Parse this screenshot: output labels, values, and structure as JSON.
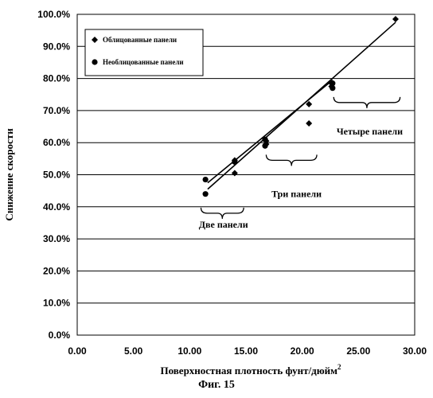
{
  "caption": "Фиг. 15",
  "chart_data": {
    "type": "scatter",
    "xlabel": "Поверхностная плотность фунт/дюйм",
    "xlabel_superscript": "2",
    "ylabel": "Снижение скорости",
    "xlim": [
      0,
      30
    ],
    "ylim": [
      0,
      1
    ],
    "x_ticks": [
      0,
      5,
      10,
      15,
      20,
      25,
      30
    ],
    "x_tick_labels": [
      "0.00",
      "5.00",
      "10.00",
      "15.00",
      "20.00",
      "25.00",
      "30.00"
    ],
    "y_ticks": [
      0,
      0.1,
      0.2,
      0.3,
      0.4,
      0.5,
      0.6,
      0.7,
      0.8,
      0.9,
      1.0
    ],
    "y_tick_labels": [
      "0.0%",
      "10.0%",
      "20.0%",
      "30.0%",
      "40.0%",
      "50.0%",
      "60.0%",
      "70.0%",
      "80.0%",
      "90.0%",
      "100.0%"
    ],
    "grid": "horizontal",
    "legend_position": "top-left",
    "series": [
      {
        "name": "Облицованные панели",
        "marker": "diamond",
        "points": [
          [
            14.0,
            0.545
          ],
          [
            14.0,
            0.505
          ],
          [
            16.8,
            0.605
          ],
          [
            16.8,
            0.595
          ],
          [
            20.6,
            0.72
          ],
          [
            20.6,
            0.66
          ],
          [
            22.6,
            0.785
          ],
          [
            22.6,
            0.775
          ],
          [
            28.3,
            0.985
          ]
        ],
        "trendline": [
          [
            11.6,
            0.455
          ],
          [
            28.3,
            0.975
          ]
        ]
      },
      {
        "name": "Необлицованные панели",
        "marker": "circle",
        "points": [
          [
            11.4,
            0.485
          ],
          [
            11.4,
            0.44
          ],
          [
            14.0,
            0.54
          ],
          [
            16.7,
            0.61
          ],
          [
            16.7,
            0.59
          ],
          [
            22.7,
            0.785
          ],
          [
            22.7,
            0.77
          ]
        ],
        "trendline": [
          [
            11.6,
            0.475
          ],
          [
            22.7,
            0.795
          ]
        ]
      }
    ],
    "annotations": [
      {
        "text": "Две панели",
        "brace_x": [
          11.0,
          14.8
        ],
        "brace_y": 0.38,
        "label_x": 13.0,
        "label_y": 0.335
      },
      {
        "text": "Три панели",
        "brace_x": [
          16.8,
          21.3
        ],
        "brace_y": 0.545,
        "label_x": 19.5,
        "label_y": 0.43
      },
      {
        "text": "Четыре панели",
        "brace_x": [
          22.8,
          28.7
        ],
        "brace_y": 0.725,
        "label_x": 26.0,
        "label_y": 0.625
      }
    ]
  }
}
